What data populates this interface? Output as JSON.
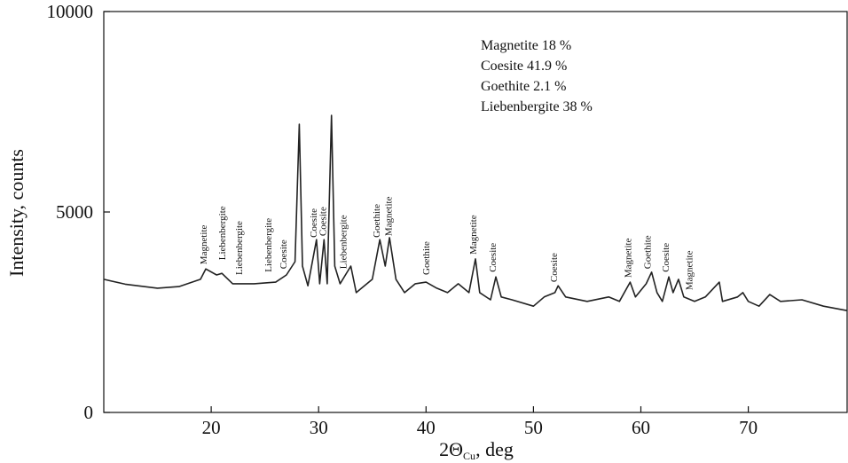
{
  "chart_data": {
    "type": "line",
    "xlabel": {
      "main": "2Θ",
      "sub": "Cu",
      "rest": ", deg"
    },
    "ylabel": "Intensity, counts",
    "xlim": [
      10,
      79.2
    ],
    "ylim": [
      0,
      10000
    ],
    "xticks": [
      20,
      30,
      40,
      50,
      60,
      70
    ],
    "yticks": [
      0,
      5000,
      10000
    ],
    "color": "#222",
    "composition": [
      "Magnetite 18 %",
      "Coesite 41.9 %",
      "Goethite 2.1 %",
      "Liebenbergite 38 %"
    ],
    "peak_labels": [
      {
        "text": "Magnetite",
        "x": 19.6,
        "y": 3690
      },
      {
        "text": "Liebenbergite",
        "x": 21.3,
        "y": 3800
      },
      {
        "text": "Liebenbergite",
        "x": 22.9,
        "y": 3430
      },
      {
        "text": "Liebenbergite",
        "x": 25.6,
        "y": 3500
      },
      {
        "text": "Coesite",
        "x": 27.0,
        "y": 3580
      },
      {
        "text": "Coesite",
        "x": 29.8,
        "y": 4360
      },
      {
        "text": "Coesite",
        "x": 30.7,
        "y": 4400
      },
      {
        "text": "Liebenbergite",
        "x": 32.6,
        "y": 3580
      },
      {
        "text": "Goethite",
        "x": 35.7,
        "y": 4360
      },
      {
        "text": "Magnetite",
        "x": 36.8,
        "y": 4400
      },
      {
        "text": "Goethite",
        "x": 40.3,
        "y": 3430
      },
      {
        "text": "Magnetite",
        "x": 44.7,
        "y": 3940
      },
      {
        "text": "Coesite",
        "x": 46.5,
        "y": 3500
      },
      {
        "text": "Coesite",
        "x": 52.2,
        "y": 3250
      },
      {
        "text": "Magnetite",
        "x": 59.1,
        "y": 3360
      },
      {
        "text": "Goethite",
        "x": 60.9,
        "y": 3580
      },
      {
        "text": "Coesite",
        "x": 62.6,
        "y": 3500
      },
      {
        "text": "Magnetite",
        "x": 64.8,
        "y": 3050
      }
    ],
    "x": [
      10,
      12,
      15,
      17,
      19,
      19.5,
      20.5,
      21,
      22,
      24,
      26,
      27,
      27.8,
      28.2,
      28.5,
      29,
      29.8,
      30.1,
      30.5,
      30.8,
      31.2,
      31.5,
      32,
      33,
      33.5,
      34,
      35,
      35.7,
      36.2,
      36.6,
      37.2,
      38,
      39,
      40,
      41,
      42,
      43,
      44,
      44.6,
      45,
      46,
      46.5,
      47,
      48,
      50,
      51,
      52,
      52.3,
      53,
      55,
      57,
      58,
      59,
      59.5,
      60.5,
      61,
      61.5,
      62,
      62.6,
      63,
      63.5,
      64,
      65,
      66,
      67.3,
      67.6,
      69,
      69.5,
      70,
      71,
      72,
      73,
      75,
      77,
      79.2
    ],
    "values": [
      3320,
      3200,
      3100,
      3140,
      3320,
      3580,
      3430,
      3470,
      3210,
      3210,
      3250,
      3430,
      3760,
      7190,
      3650,
      3160,
      4310,
      3210,
      4310,
      3210,
      7410,
      3650,
      3210,
      3650,
      2990,
      3100,
      3320,
      4310,
      3650,
      4360,
      3320,
      2990,
      3210,
      3250,
      3100,
      2990,
      3210,
      2990,
      3830,
      2990,
      2810,
      3380,
      2880,
      2810,
      2650,
      2880,
      2990,
      3160,
      2880,
      2770,
      2880,
      2770,
      3250,
      2880,
      3210,
      3500,
      2990,
      2770,
      3380,
      2990,
      3320,
      2880,
      2770,
      2880,
      3250,
      2770,
      2880,
      2990,
      2770,
      2650,
      2940,
      2770,
      2810,
      2650,
      2540
    ]
  }
}
